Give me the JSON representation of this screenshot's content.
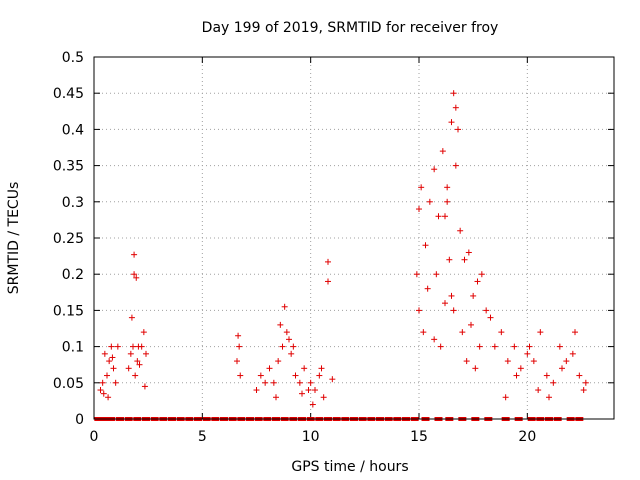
{
  "chart_data": {
    "type": "scatter",
    "title": "Day 199 of 2019, SRMTID for receiver froy",
    "xlabel": "GPS time / hours",
    "ylabel": "SRMTID / TECUs",
    "xlim": [
      0,
      24
    ],
    "ylim": [
      0,
      0.5
    ],
    "x_ticks": [
      0,
      5,
      10,
      15,
      20
    ],
    "x_tick_labels": [
      "0",
      "5",
      "10",
      "15",
      "20"
    ],
    "y_ticks": [
      0,
      0.05,
      0.1,
      0.15,
      0.2,
      0.25,
      0.3,
      0.35,
      0.4,
      0.45,
      0.5
    ],
    "y_tick_labels": [
      "0",
      "0.05",
      "0.1",
      "0.15",
      "0.2",
      "0.25",
      "0.3",
      "0.35",
      "0.4",
      "0.45",
      "0.5"
    ],
    "grid": true,
    "marker": "+",
    "marker_color": "#e00000",
    "series": [
      {
        "name": "SRMTID",
        "x": [
          0.3,
          0.4,
          0.5,
          0.6,
          0.7,
          0.8,
          0.9,
          1.0,
          1.1,
          0.45,
          0.65,
          0.85,
          1.6,
          1.7,
          1.8,
          1.9,
          2.0,
          2.1,
          2.2,
          2.3,
          2.4,
          1.85,
          1.85,
          1.75,
          1.95,
          2.35,
          2.05,
          6.6,
          6.7,
          6.65,
          6.75,
          7.5,
          7.7,
          7.9,
          8.1,
          8.3,
          8.5,
          8.7,
          8.9,
          9.1,
          9.3,
          9.5,
          9.7,
          9.9,
          8.6,
          8.8,
          9.0,
          9.2,
          8.4,
          9.6,
          10.0,
          10.2,
          10.4,
          10.6,
          10.1,
          10.5,
          10.8,
          10.8,
          11.0,
          14.9,
          15.0,
          15.1,
          15.3,
          15.5,
          15.7,
          15.9,
          16.1,
          16.3,
          16.5,
          16.7,
          16.9,
          17.1,
          17.3,
          17.5,
          17.7,
          17.9,
          18.1,
          18.3,
          15.0,
          15.2,
          15.4,
          15.8,
          16.2,
          16.6,
          17.0,
          17.4,
          17.8,
          16.2,
          16.3,
          16.4,
          16.5,
          15.7,
          16.0,
          16.6,
          16.7,
          16.8,
          17.2,
          17.6,
          18.5,
          18.8,
          19.1,
          19.4,
          19.7,
          20.0,
          20.3,
          20.6,
          20.9,
          21.2,
          21.5,
          21.8,
          22.1,
          22.4,
          22.7,
          19.0,
          19.5,
          20.1,
          20.5,
          21.0,
          21.6,
          22.2,
          22.6
        ],
        "y": [
          0.04,
          0.05,
          0.09,
          0.06,
          0.08,
          0.1,
          0.07,
          0.05,
          0.1,
          0.035,
          0.03,
          0.085,
          0.07,
          0.09,
          0.1,
          0.06,
          0.08,
          0.075,
          0.1,
          0.12,
          0.09,
          0.227,
          0.2,
          0.14,
          0.195,
          0.045,
          0.1,
          0.08,
          0.1,
          0.115,
          0.06,
          0.04,
          0.06,
          0.05,
          0.07,
          0.05,
          0.08,
          0.1,
          0.12,
          0.09,
          0.06,
          0.05,
          0.07,
          0.04,
          0.13,
          0.155,
          0.11,
          0.1,
          0.03,
          0.035,
          0.05,
          0.04,
          0.06,
          0.03,
          0.02,
          0.07,
          0.217,
          0.19,
          0.055,
          0.2,
          0.29,
          0.32,
          0.24,
          0.3,
          0.345,
          0.28,
          0.37,
          0.32,
          0.41,
          0.35,
          0.26,
          0.22,
          0.23,
          0.17,
          0.19,
          0.2,
          0.15,
          0.14,
          0.15,
          0.12,
          0.18,
          0.2,
          0.16,
          0.15,
          0.12,
          0.13,
          0.1,
          0.28,
          0.3,
          0.22,
          0.17,
          0.11,
          0.1,
          0.45,
          0.43,
          0.4,
          0.08,
          0.07,
          0.1,
          0.12,
          0.08,
          0.1,
          0.07,
          0.09,
          0.08,
          0.12,
          0.06,
          0.05,
          0.1,
          0.08,
          0.09,
          0.06,
          0.05,
          0.03,
          0.06,
          0.1,
          0.04,
          0.03,
          0.07,
          0.12,
          0.04
        ]
      }
    ],
    "zero_markers_x": [
      0.2,
      0.5,
      0.8,
      1.2,
      1.6,
      2.0,
      2.4,
      2.8,
      3.2,
      3.6,
      4.0,
      4.4,
      4.8,
      5.2,
      5.6,
      6.0,
      6.4,
      6.8,
      7.2,
      7.6,
      8.0,
      8.4,
      8.8,
      9.2,
      9.6,
      10.0,
      10.4,
      10.8,
      11.2,
      11.6,
      12.0,
      12.4,
      12.8,
      13.2,
      13.6,
      14.0,
      14.4,
      14.8,
      15.3,
      15.9,
      16.4,
      17.0,
      17.6,
      18.2,
      19.0,
      19.6,
      20.2,
      20.6,
      21.0,
      21.4,
      22.0,
      22.4
    ]
  }
}
